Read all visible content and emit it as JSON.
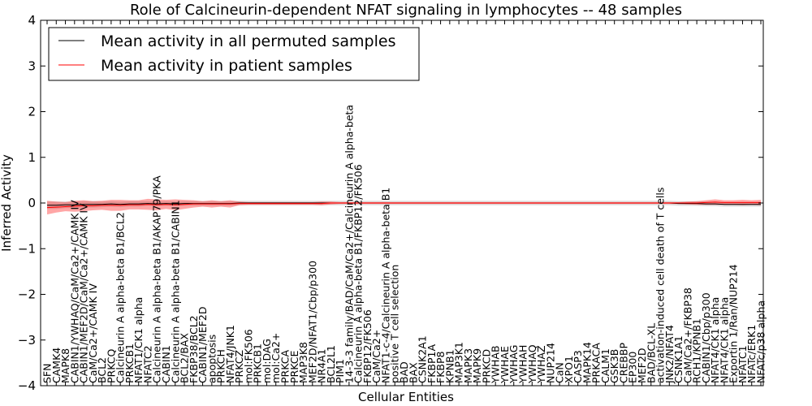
{
  "chart_data": {
    "type": "line",
    "title": "Role of Calcineurin-dependent NFAT signaling in lymphocytes -- 48 samples",
    "xlabel": "Cellular Entities",
    "ylabel": "Inferred Activity",
    "ylim": [
      -4,
      4
    ],
    "yticks": [
      -4,
      -3,
      -2,
      -1,
      0,
      1,
      2,
      3,
      4
    ],
    "ytick_labels": [
      "−4",
      "−3",
      "−2",
      "−1",
      "0",
      "1",
      "2",
      "3",
      "4"
    ],
    "legend_position": "top-left",
    "categories": [
      "SFN",
      "CAMK4",
      "MAPK8",
      "CABIN1/YWHAQ/CaM/Ca2+/CAMK IV",
      "CABIN1/MEF2D/CaM/Ca2+/CAMK IV",
      "CaM/Ca2+/CAMK IV",
      "BCL2",
      "PRKCQ",
      "Calcineurin A alpha-beta B1/BCL2",
      "PRKCB1",
      "NFAT1/CK1 alpha",
      "NFATC2",
      "Calcineurin A alpha-beta B1/AKAP79/PKA",
      "CABIN1",
      "Calcineurin A alpha-beta B1/CABIN1",
      "BCL2/BAX",
      "FKBP38/BCL2",
      "CABIN1/MEF2D",
      "apoptosis",
      "PRKCH",
      "NFAT4/JNK1",
      "PRKCZ",
      "mol:FK506",
      "PRKCB1",
      "mol:DAG",
      "mol:Ca2+",
      "PRKCA",
      "PRKCE",
      "MAP3K8",
      "MEF2D/NFAT1/Cbp/p300",
      "NR4A1",
      "BCL2L1",
      "PIM1",
      "14-3-3 family/BAD/CaM/Ca2+/Calcineurin A alpha-beta",
      "Calcineurin A alpha-beta B1/FKBP12/FK506",
      "FKBP12/FK506",
      "CaM/Ca2+",
      "NFAT1-c-4/Calcineurin A alpha-beta B1",
      "positive T cell selection",
      "BAD",
      "BAX",
      "CSNK2A1",
      "FKBP1A",
      "FKBP8",
      "KPNB1",
      "MAP3K1",
      "MAPK3",
      "MAPK9",
      "PRKCD",
      "YWHAB",
      "YWHAE",
      "YWHAG",
      "YWHAH",
      "YWHAQ",
      "YWHAZ",
      "NUP214",
      "CaN",
      "XPO1",
      "CASP3",
      "MAPK14",
      "PRKACA",
      "CALM1",
      "GSK3B",
      "CREBBP",
      "EP300",
      "MEF2D",
      "BAD/BCL-XL",
      "activation-induced cell death of T cells",
      "JNK2/NFAT4",
      "CSNK1A1",
      "CaM/Ca2+/FKBP38",
      "RCH1/KPNB1",
      "CABIN1/Cbp/p300",
      "NFAT4/CK1 alpha",
      "NFAT4/CK1 alpha",
      "Exportin 1/Ran/NUP214",
      "NFATC1",
      "NFATc/ERK1",
      "NFATc/p38 alpha"
    ],
    "series": [
      {
        "name": "Mean activity in all permuted samples",
        "color": "#000000",
        "values": [
          -0.05,
          -0.05,
          -0.04,
          -0.04,
          -0.03,
          -0.03,
          -0.03,
          -0.02,
          -0.03,
          -0.02,
          -0.02,
          -0.01,
          -0.02,
          -0.01,
          -0.02,
          -0.01,
          -0.01,
          -0.01,
          -0.01,
          -0.01,
          -0.01,
          0,
          0,
          0,
          0,
          0,
          0,
          0,
          0,
          0,
          0,
          0,
          0,
          0,
          0,
          0,
          0,
          0,
          0,
          0,
          0,
          0,
          0,
          0,
          0,
          0,
          0,
          0,
          0,
          0,
          0,
          0,
          0,
          0,
          0,
          0,
          0,
          0,
          0,
          0,
          0,
          0,
          0,
          0,
          0,
          0,
          0,
          0,
          0,
          -0.01,
          -0.01,
          -0.01,
          -0.02,
          -0.02,
          -0.03,
          -0.03,
          -0.03,
          -0.03,
          -0.03
        ]
      },
      {
        "name": "Mean activity in patient samples",
        "color": "#ff0000",
        "values": [
          -0.1,
          -0.09,
          -0.08,
          -0.07,
          -0.06,
          -0.06,
          -0.05,
          -0.05,
          -0.05,
          -0.04,
          -0.04,
          -0.03,
          -0.04,
          -0.03,
          -0.04,
          -0.03,
          -0.02,
          -0.02,
          -0.02,
          -0.02,
          -0.02,
          -0.01,
          -0.01,
          -0.01,
          -0.01,
          -0.01,
          -0.01,
          -0.01,
          -0.01,
          -0.01,
          -0.01,
          0,
          0,
          0,
          0,
          0,
          0,
          0,
          0,
          0,
          0,
          0,
          0,
          0,
          0,
          0,
          0,
          0,
          0,
          0,
          0,
          0,
          0,
          0,
          0,
          0,
          0,
          0,
          0,
          0,
          0,
          0,
          0,
          0,
          0,
          0,
          0,
          0,
          0,
          0,
          0,
          0,
          0.01,
          0.02,
          0.01,
          0.01,
          0.01,
          0.01,
          0.01
        ]
      }
    ],
    "band_halfwidth": [
      0.15,
      0.12,
      0.1,
      0.12,
      0.12,
      0.1,
      0.1,
      0.12,
      0.12,
      0.1,
      0.1,
      0.12,
      0.12,
      0.1,
      0.12,
      0.1,
      0.08,
      0.06,
      0.08,
      0.06,
      0.08,
      0.04,
      0.03,
      0.03,
      0.03,
      0.03,
      0.03,
      0.03,
      0.03,
      0.03,
      0.04,
      0.03,
      0.02,
      0.02,
      0.02,
      0.02,
      0.02,
      0.02,
      0.02,
      0.02,
      0.02,
      0.02,
      0.02,
      0.02,
      0.02,
      0.02,
      0.02,
      0.02,
      0.02,
      0.02,
      0.02,
      0.02,
      0.02,
      0.02,
      0.02,
      0.02,
      0.02,
      0.02,
      0.02,
      0.02,
      0.02,
      0.02,
      0.02,
      0.02,
      0.02,
      0.02,
      0.02,
      0.02,
      0.02,
      0.02,
      0.03,
      0.04,
      0.05,
      0.06,
      0.05,
      0.05,
      0.06,
      0.05,
      0.06
    ],
    "grey_band_halfwidth": [
      0.08,
      0.08,
      0.07,
      0.07,
      0.07,
      0.07,
      0.06,
      0.06,
      0.06,
      0.06,
      0.06,
      0.05,
      0.05,
      0.05,
      0.05,
      0.05,
      0.05,
      0.05,
      0.05,
      0.05,
      0.05,
      0.05,
      0.05,
      0.05,
      0.05,
      0.05,
      0.05,
      0.05,
      0.05,
      0.05,
      0.05,
      0.05,
      0.05,
      0.05,
      0.05,
      0.05,
      0.05,
      0.05,
      0.05,
      0.05,
      0.05,
      0.05,
      0.05,
      0.05,
      0.05,
      0.05,
      0.05,
      0.05,
      0.05,
      0.05,
      0.05,
      0.05,
      0.05,
      0.05,
      0.05,
      0.05,
      0.05,
      0.05,
      0.05,
      0.05,
      0.05,
      0.05,
      0.05,
      0.05,
      0.05,
      0.05,
      0.05,
      0.05,
      0.05,
      0.05,
      0.05,
      0.05,
      0.05,
      0.05,
      0.05,
      0.05,
      0.05,
      0.05,
      0.05
    ]
  }
}
